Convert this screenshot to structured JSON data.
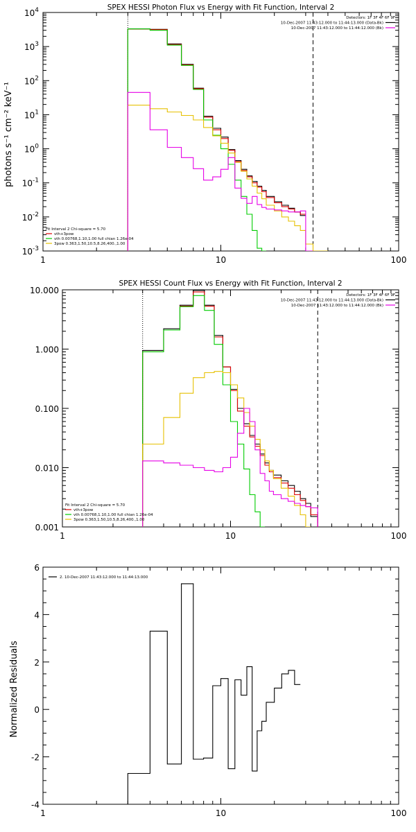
{
  "chart_data": [
    {
      "type": "line",
      "title": "SPEX HESSI Photon Flux vs Energy with Fit Function, Interval 2",
      "xlabel": "",
      "ylabel": "photons s⁻¹ cm⁻² keV⁻¹",
      "xscale": "log",
      "yscale": "log",
      "xlim": [
        1,
        100
      ],
      "ylim": [
        0.001,
        10000
      ],
      "x_ticks": [
        {
          "v": 1,
          "label": "1"
        },
        {
          "v": 10,
          "label": "10"
        },
        {
          "v": 100,
          "label": "100"
        }
      ],
      "y_ticks": [
        {
          "v": 0.001,
          "base": "10",
          "exp": "-3"
        },
        {
          "v": 0.01,
          "base": "10",
          "exp": "-2"
        },
        {
          "v": 0.1,
          "base": "10",
          "exp": "-1"
        },
        {
          "v": 1,
          "base": "10",
          "exp": "0"
        },
        {
          "v": 10,
          "base": "10",
          "exp": "1"
        },
        {
          "v": 100,
          "base": "10",
          "exp": "2"
        },
        {
          "v": 1000,
          "base": "10",
          "exp": "3"
        },
        {
          "v": 10000,
          "base": "10",
          "exp": "4"
        }
      ],
      "vlines": [
        {
          "x": 3.0,
          "style": "dotted"
        },
        {
          "x": 33.0,
          "style": "dashed"
        }
      ],
      "energy_edges": [
        3.0,
        4.0,
        5.0,
        6.0,
        7.0,
        8.0,
        9.0,
        10.0,
        11.0,
        12.0,
        13.0,
        14.0,
        15.0,
        16.0,
        17.0,
        18.0,
        20.0,
        22.0,
        24.0,
        26.0,
        28.0,
        30.0,
        33.0,
        36.0,
        40.0
      ],
      "series": [
        {
          "name": "Data",
          "color": "#000000",
          "values": [
            3300,
            3200,
            1200,
            300,
            60,
            9,
            4,
            2.2,
            0.95,
            0.45,
            0.25,
            0.16,
            0.11,
            0.08,
            0.06,
            0.04,
            0.028,
            0.022,
            0.018,
            0.014,
            0.011,
            null,
            null,
            null
          ]
        },
        {
          "name": "vth+3pow",
          "color": "#dd0000",
          "values": [
            3250,
            3150,
            1150,
            290,
            58,
            8.5,
            3.6,
            2.0,
            0.9,
            0.42,
            0.23,
            0.15,
            0.1,
            0.075,
            0.055,
            0.037,
            0.026,
            0.02,
            0.017,
            0.014,
            0.012,
            null,
            null,
            null
          ]
        },
        {
          "name": "vth 0.00768,1.10,1.00  full chian 1.26e-04",
          "color": "#00cc00",
          "values": [
            3300,
            3000,
            1100,
            280,
            55,
            7,
            2.5,
            1.0,
            0.35,
            0.12,
            0.04,
            0.012,
            0.004,
            0.0012,
            0.0008,
            null,
            null,
            null,
            null,
            null,
            null,
            null,
            null,
            null
          ]
        },
        {
          "name": "3pow 0.363,1.50,10.5,8.26,400.,1.00",
          "color": "#e6c000",
          "values": [
            19,
            15,
            12,
            9.5,
            7,
            4.2,
            2.4,
            1.45,
            0.75,
            0.4,
            0.22,
            0.13,
            0.08,
            0.05,
            0.034,
            0.022,
            0.015,
            0.01,
            0.0075,
            0.0055,
            0.004,
            0.0016,
            0.0009,
            0.0008
          ]
        },
        {
          "name": "Bk",
          "color": "#e600e6",
          "values": [
            45,
            3.6,
            1.1,
            0.55,
            0.26,
            0.12,
            0.15,
            0.25,
            0.55,
            0.07,
            0.035,
            0.025,
            0.04,
            0.023,
            0.019,
            0.017,
            0.016,
            0.015,
            0.014,
            0.014,
            0.015,
            0.0008,
            null,
            null
          ]
        }
      ],
      "legend_top": {
        "placement": "top-right",
        "detectors": "Detectors: 1F 3F 4F 6F 9F",
        "lines": [
          {
            "text": "10-Dec-2007 11:43:12.000 to 11:44:13.000 (Data-Bk)",
            "color": "#000000"
          },
          {
            "text": "10-Dec-2007 11:43:12.000 to 11:44:12.000 (Bk)",
            "color": "#e600e6"
          }
        ]
      },
      "legend_bottom": {
        "placement": "bottom-left",
        "header": "Fit Interval  2   Chi-square = 5.70",
        "lines": [
          {
            "text": "vth+3pow",
            "color": "#dd0000"
          },
          {
            "text": "vth 0.00768,1.10,1.00  full chian 1.26e-04",
            "color": "#00cc00"
          },
          {
            "text": "3pow 0.363,1.50,10.5,8.26,400.,1.00",
            "color": "#e6c000"
          }
        ]
      }
    },
    {
      "type": "line",
      "title": "SPEX HESSI Count Flux vs Energy with Fit Function, Interval 2",
      "xlabel": "",
      "ylabel": "",
      "xscale": "log",
      "yscale": "log",
      "xlim": [
        1,
        100
      ],
      "ylim": [
        0.001,
        10.0
      ],
      "x_ticks": [
        {
          "v": 1,
          "label": "1"
        },
        {
          "v": 10,
          "label": "10"
        },
        {
          "v": 100,
          "label": "100"
        }
      ],
      "y_ticks": [
        {
          "v": 0.001,
          "label": "0.001"
        },
        {
          "v": 0.01,
          "label": "0.010"
        },
        {
          "v": 0.1,
          "label": "0.100"
        },
        {
          "v": 1,
          "label": "1.000"
        },
        {
          "v": 10,
          "label": "10.000"
        }
      ],
      "vlines": [
        {
          "x": 3.0,
          "style": "dotted"
        },
        {
          "x": 33.0,
          "style": "dashed"
        }
      ],
      "energy_edges": [
        3.0,
        4.0,
        5.0,
        6.0,
        7.0,
        8.0,
        9.0,
        10.0,
        11.0,
        12.0,
        13.0,
        14.0,
        15.0,
        16.0,
        17.0,
        18.0,
        20.0,
        22.0,
        24.0,
        26.0,
        28.0,
        30.0,
        33.0
      ],
      "series": [
        {
          "name": "Data",
          "color": "#000000",
          "values": [
            0.95,
            2.2,
            5.5,
            9.8,
            5.5,
            1.7,
            0.5,
            0.21,
            0.1,
            0.055,
            0.035,
            0.025,
            0.017,
            0.012,
            0.009,
            0.0075,
            0.006,
            0.005,
            0.004,
            0.003,
            0.0025,
            0.0015
          ]
        },
        {
          "name": "vth+3pow",
          "color": "#dd0000",
          "values": [
            0.9,
            2.1,
            5.3,
            9.2,
            5.3,
            1.6,
            0.5,
            0.2,
            0.09,
            0.05,
            0.033,
            0.023,
            0.016,
            0.011,
            0.0085,
            0.0068,
            0.0055,
            0.0045,
            0.0035,
            0.0028,
            0.0022,
            0.0016
          ]
        },
        {
          "name": "vth 0.00768,1.10,1.00  full chian 1.26e-04",
          "color": "#00cc00",
          "values": [
            0.9,
            2.1,
            5.2,
            8.0,
            4.5,
            1.2,
            0.25,
            0.06,
            0.025,
            0.0095,
            0.0035,
            0.0018,
            0.0009,
            null,
            null,
            null,
            null,
            null,
            null,
            null,
            null,
            null
          ]
        },
        {
          "name": "3pow 0.363,1.50,10.5,8.26,400.,1.00",
          "color": "#e6c000",
          "values": [
            0.025,
            0.07,
            0.18,
            0.33,
            0.4,
            0.42,
            0.4,
            0.25,
            0.15,
            0.085,
            0.05,
            0.03,
            0.02,
            0.013,
            0.009,
            0.0065,
            0.0045,
            0.0033,
            0.0023,
            0.0016,
            0.0008,
            null
          ]
        },
        {
          "name": "Bk",
          "color": "#e600e6",
          "values": [
            0.013,
            0.012,
            0.011,
            0.01,
            0.009,
            0.0085,
            0.01,
            0.015,
            0.038,
            0.1,
            0.06,
            0.02,
            0.008,
            0.006,
            0.004,
            0.0035,
            0.003,
            0.0027,
            0.0025,
            0.0023,
            0.0022,
            0.0021
          ]
        }
      ],
      "legend_top": {
        "placement": "top-right",
        "detectors": "Detectors: 1F 3F 4F 6F 9F",
        "lines": [
          {
            "text": "10-Dec-2007 11:43:12.000 to 11:44:13.000 (Data-Bk)",
            "color": "#000000"
          },
          {
            "text": "10-Dec-2007 11:43:12.000 to 11:44:12.000 (Bk)",
            "color": "#e600e6"
          }
        ]
      },
      "legend_bottom": {
        "placement": "bottom-left",
        "header": "Fit Interval  2   Chi-square = 5.70",
        "lines": [
          {
            "text": "vth+3pow",
            "color": "#dd0000"
          },
          {
            "text": "vth 0.00768,1.10,1.00  full chian 1.26e-04",
            "color": "#00cc00"
          },
          {
            "text": "3pow 0.363,1.50,10.5,8.26,400.,1.00",
            "color": "#e6c000"
          }
        ]
      }
    },
    {
      "type": "line",
      "title": "",
      "xlabel": "",
      "ylabel": "Normalized Residuals",
      "xscale": "log",
      "yscale": "linear",
      "xlim": [
        1,
        100
      ],
      "ylim": [
        -4,
        6
      ],
      "x_ticks": [
        {
          "v": 1,
          "label": "1"
        },
        {
          "v": 10,
          "label": "10"
        },
        {
          "v": 100,
          "label": "100"
        }
      ],
      "y_ticks": [
        {
          "v": -4,
          "label": "-4"
        },
        {
          "v": -2,
          "label": "-2"
        },
        {
          "v": 0,
          "label": "0"
        },
        {
          "v": 2,
          "label": "2"
        },
        {
          "v": 4,
          "label": "4"
        },
        {
          "v": 6,
          "label": "6"
        }
      ],
      "energy_edges": [
        3.0,
        4.0,
        5.0,
        6.0,
        7.0,
        8.0,
        9.0,
        10.0,
        11.0,
        12.0,
        13.0,
        14.0,
        15.0,
        16.0,
        17.0,
        18.0,
        20.0,
        22.0,
        24.0,
        26.0,
        28.0,
        30.0,
        33.0
      ],
      "series": [
        {
          "name": "2. 10-Dec-2007 11:43:12.000 to 11:44:13.000",
          "color": "#000000",
          "values": [
            -2.7,
            3.3,
            -2.3,
            5.3,
            -2.1,
            -2.05,
            1.0,
            1.3,
            -2.5,
            1.25,
            0.6,
            1.8,
            -2.6,
            -0.9,
            -0.5,
            0.3,
            0.9,
            1.5,
            1.65,
            1.05,
            null,
            null
          ]
        }
      ],
      "legend_top": {
        "placement": "top-left",
        "lines": [
          {
            "text": "2. 10-Dec-2007 11:43:12.000 to 11:44:13.000",
            "color": "#000000"
          }
        ]
      }
    }
  ]
}
